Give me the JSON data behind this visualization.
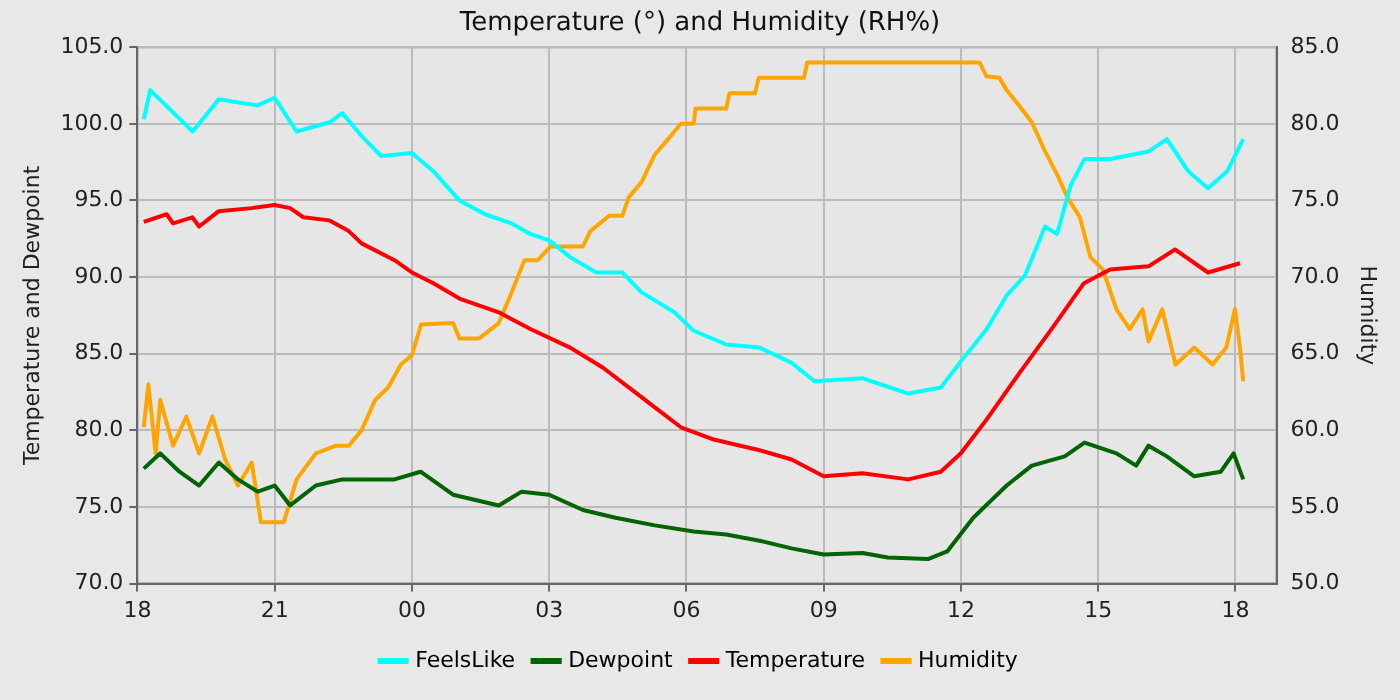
{
  "chart_data": {
    "type": "line",
    "title": "Temperature (°) and Humidity (RH%)",
    "xlabel": null,
    "ylabel": "Temperature and Dewpoint",
    "y2label": "Humidity",
    "xlim": [
      18,
      42.9
    ],
    "xticks": [
      {
        "value": 18,
        "label": "18"
      },
      {
        "value": 21,
        "label": "21"
      },
      {
        "value": 24,
        "label": "00"
      },
      {
        "value": 27,
        "label": "03"
      },
      {
        "value": 30,
        "label": "06"
      },
      {
        "value": 33,
        "label": "09"
      },
      {
        "value": 36,
        "label": "12"
      },
      {
        "value": 39,
        "label": "15"
      },
      {
        "value": 42,
        "label": "18"
      }
    ],
    "ylim": [
      70,
      105
    ],
    "yticks": [
      {
        "value": 70,
        "label": "70.0"
      },
      {
        "value": 75,
        "label": "75.0"
      },
      {
        "value": 80,
        "label": "80.0"
      },
      {
        "value": 85,
        "label": "85.0"
      },
      {
        "value": 90,
        "label": "90.0"
      },
      {
        "value": 95,
        "label": "95.0"
      },
      {
        "value": 100,
        "label": "100.0"
      },
      {
        "value": 105,
        "label": "105.0"
      }
    ],
    "y2lim": [
      50,
      85
    ],
    "y2ticks": [
      {
        "value": 50,
        "label": "50.0"
      },
      {
        "value": 55,
        "label": "55.0"
      },
      {
        "value": 60,
        "label": "60.0"
      },
      {
        "value": 65,
        "label": "65.0"
      },
      {
        "value": 70,
        "label": "70.0"
      },
      {
        "value": 75,
        "label": "75.0"
      },
      {
        "value": 80,
        "label": "80.0"
      },
      {
        "value": 85,
        "label": "85.0"
      }
    ],
    "grid": true,
    "legend": "bottom",
    "marker": "none",
    "series": [
      {
        "name": "FeelsLike",
        "color": "#00ffff",
        "x": [
          18.14,
          18.28,
          19.21,
          19.78,
          20.63,
          21,
          21.48,
          22.2,
          22.48,
          22.9,
          23.33,
          24,
          24.47,
          25.04,
          25.6,
          26.18,
          26.6,
          27,
          27.46,
          28.03,
          28.6,
          29.02,
          29.74,
          30.16,
          30.87,
          31.6,
          32.3,
          32.8,
          33.85,
          34.85,
          35.56,
          36,
          36.56,
          37,
          37.4,
          37.84,
          38.1,
          38.4,
          38.7,
          39.26,
          40.1,
          40.5,
          40.97,
          41.4,
          41.82,
          42.17
        ],
        "values": [
          100.3,
          102.2,
          99.5,
          101.6,
          101.2,
          101.7,
          99.5,
          100.1,
          100.7,
          99.2,
          97.9,
          98.1,
          96.9,
          95,
          94.1,
          93.5,
          92.8,
          92.4,
          91.3,
          90.3,
          90.3,
          89,
          87.7,
          86.5,
          85.6,
          85.4,
          84.4,
          83.2,
          83.4,
          82.4,
          82.8,
          84.5,
          86.6,
          88.8,
          90.1,
          93.3,
          92.8,
          96,
          97.7,
          97.7,
          98.2,
          99,
          96.9,
          95.8,
          96.9,
          99
        ]
      },
      {
        "name": "Dewpoint",
        "color": "#006400",
        "x": [
          18.14,
          18.5,
          18.92,
          19.35,
          19.78,
          20.2,
          20.63,
          21,
          21.34,
          21.9,
          22.48,
          23.05,
          23.62,
          24.19,
          24.9,
          25.9,
          26.4,
          27,
          27.74,
          28.45,
          29.31,
          30.16,
          30.87,
          31.6,
          32.3,
          33,
          33.85,
          34.4,
          35.28,
          35.7,
          36.27,
          37,
          37.55,
          38.27,
          38.7,
          39.4,
          39.83,
          40.1,
          40.5,
          41.1,
          41.68,
          41.96,
          42.17
        ],
        "values": [
          77.5,
          78.5,
          77.3,
          76.4,
          77.9,
          76.8,
          76,
          76.4,
          75.1,
          76.4,
          76.8,
          76.8,
          76.8,
          77.3,
          75.8,
          75.1,
          76,
          75.8,
          74.8,
          74.3,
          73.8,
          73.4,
          73.2,
          72.8,
          72.3,
          71.9,
          72,
          71.7,
          71.6,
          72.1,
          74.3,
          76.4,
          77.7,
          78.3,
          79.2,
          78.5,
          77.7,
          79,
          78.3,
          77,
          77.3,
          78.5,
          76.8
        ]
      },
      {
        "name": "Temperature",
        "color": "#ff0000",
        "x": [
          18.14,
          18.64,
          18.78,
          19.2,
          19.35,
          19.78,
          20.5,
          21,
          21.34,
          21.63,
          22.2,
          22.62,
          22.9,
          23.62,
          24,
          24.47,
          25.04,
          25.9,
          26.6,
          27.46,
          28.17,
          28.74,
          29.31,
          29.88,
          30.6,
          31.6,
          32.3,
          33,
          33.85,
          34.85,
          35.56,
          36,
          36.56,
          37.27,
          37.98,
          38.69,
          39.26,
          40.1,
          40.68,
          41.4,
          42.1
        ],
        "values": [
          93.6,
          94.1,
          93.5,
          93.9,
          93.3,
          94.3,
          94.5,
          94.7,
          94.5,
          93.9,
          93.7,
          93,
          92.2,
          91.1,
          90.3,
          89.6,
          88.6,
          87.7,
          86.6,
          85.4,
          84.1,
          82.8,
          81.5,
          80.2,
          79.4,
          78.7,
          78.1,
          77,
          77.2,
          76.8,
          77.3,
          78.5,
          80.7,
          83.7,
          86.6,
          89.6,
          90.5,
          90.7,
          91.8,
          90.3,
          90.9
        ]
      },
      {
        "name": "Humidity",
        "color": "#ffa500",
        "axis": "y2",
        "x": [
          18.14,
          18.24,
          18.4,
          18.5,
          18.78,
          19.07,
          19.35,
          19.64,
          19.92,
          20.2,
          20.5,
          20.7,
          21.2,
          21.48,
          21.9,
          22.34,
          22.62,
          22.9,
          23.2,
          23.48,
          23.76,
          24,
          24.2,
          24.9,
          25.04,
          25.47,
          25.9,
          26.18,
          26.46,
          26.75,
          27.03,
          27.74,
          27.9,
          28.31,
          28.6,
          28.74,
          29.02,
          29.31,
          29.6,
          29.88,
          30.16,
          30.2,
          30.87,
          30.94,
          31.5,
          31.58,
          32.57,
          32.64,
          36.41,
          36.56,
          36.84,
          37,
          37.27,
          37.55,
          37.84,
          38.1,
          38.33,
          38.6,
          38.83,
          39.1,
          39.4,
          39.69,
          39.97,
          40.1,
          40.4,
          40.69,
          41.1,
          41.5,
          41.8,
          41.99,
          42.1,
          42.17
        ],
        "values": [
          60.2,
          63,
          58.5,
          62,
          59,
          60.9,
          58.5,
          60.9,
          58.1,
          56.4,
          57.9,
          54,
          54,
          56.8,
          58.5,
          59,
          59,
          60,
          62,
          62.8,
          64.3,
          64.9,
          66.9,
          67,
          66,
          66,
          67,
          69,
          71.1,
          71.1,
          72,
          72,
          73,
          74,
          74,
          75.2,
          76.2,
          78,
          79,
          80,
          80,
          81,
          81,
          82,
          82,
          83,
          83,
          84,
          84,
          83.1,
          83,
          82.2,
          81.2,
          80.1,
          78.2,
          76.7,
          75.2,
          73.9,
          71.3,
          70.5,
          67.9,
          66.6,
          67.9,
          65.8,
          67.9,
          64.3,
          65.4,
          64.3,
          65.4,
          67.9,
          65.4,
          63.2
        ]
      }
    ]
  }
}
